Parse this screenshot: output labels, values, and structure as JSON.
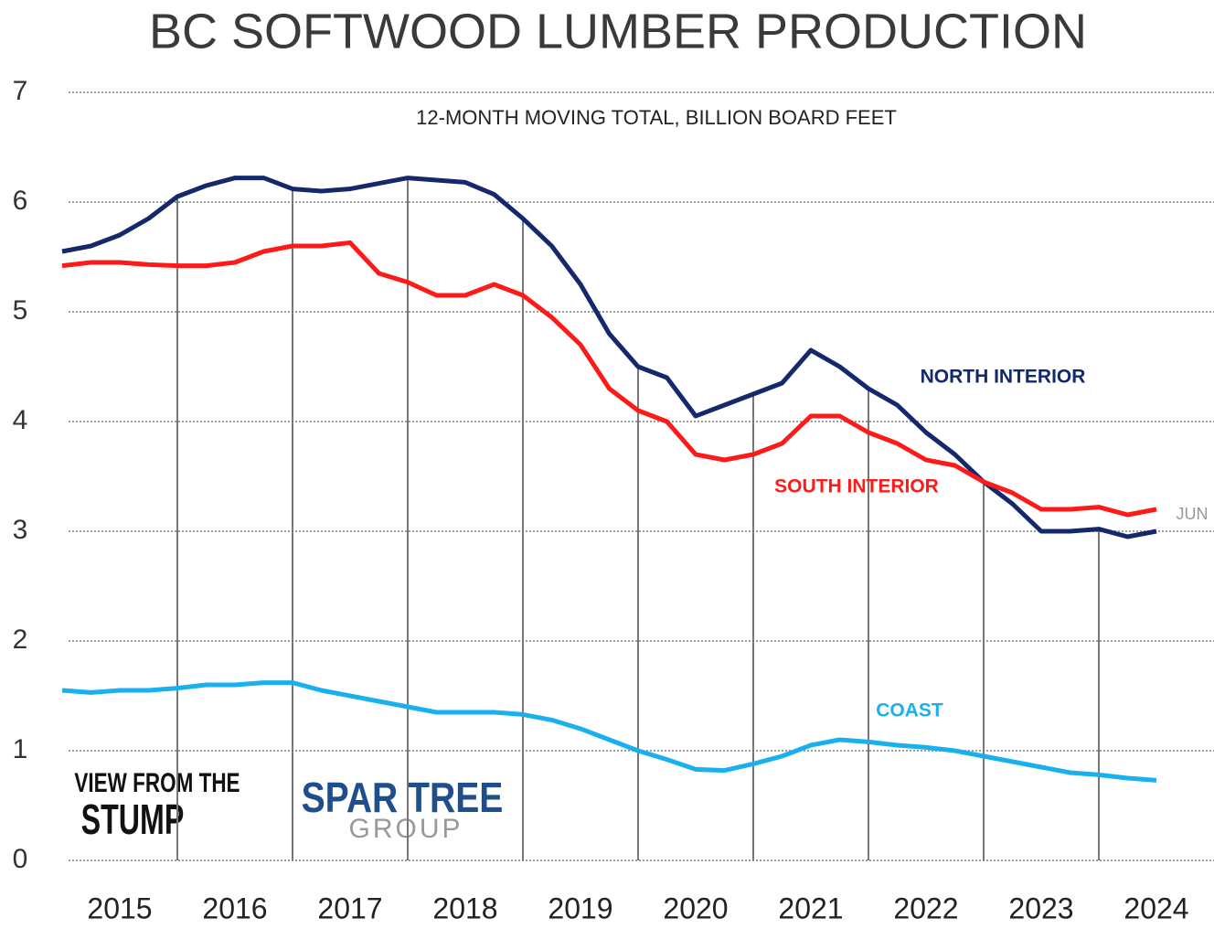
{
  "chart_data": {
    "type": "line",
    "title": "BC SOFTWOOD LUMBER PRODUCTION",
    "subtitle": "12-MONTH MOVING TOTAL, BILLION BOARD FEET",
    "categories": [
      "2015",
      "2016",
      "2017",
      "2018",
      "2019",
      "2020",
      "2021",
      "2022",
      "2023",
      "2024"
    ],
    "x": [
      2015,
      2015.25,
      2015.5,
      2015.75,
      2016,
      2016.25,
      2016.5,
      2016.75,
      2017,
      2017.25,
      2017.5,
      2017.75,
      2018,
      2018.25,
      2018.5,
      2018.75,
      2019,
      2019.25,
      2019.5,
      2019.75,
      2020,
      2020.25,
      2020.5,
      2020.75,
      2021,
      2021.25,
      2021.5,
      2021.75,
      2022,
      2022.25,
      2022.5,
      2022.75,
      2023,
      2023.25,
      2023.5,
      2023.75,
      2024,
      2024.25,
      2024.5
    ],
    "xlim": [
      2015,
      2025
    ],
    "series": [
      {
        "name": "NORTH INTERIOR",
        "color": "#14286b",
        "values": [
          5.55,
          5.6,
          5.7,
          5.85,
          6.05,
          6.15,
          6.22,
          6.22,
          6.12,
          6.1,
          6.12,
          6.17,
          6.22,
          6.2,
          6.18,
          6.07,
          5.85,
          5.6,
          5.25,
          4.8,
          4.5,
          4.4,
          4.05,
          4.15,
          4.25,
          4.35,
          4.65,
          4.5,
          4.3,
          4.15,
          3.9,
          3.7,
          3.45,
          3.25,
          3.0,
          3.0,
          3.02,
          2.95,
          3.0
        ]
      },
      {
        "name": "SOUTH INTERIOR",
        "color": "#ff1a1a",
        "values": [
          5.42,
          5.45,
          5.45,
          5.43,
          5.42,
          5.42,
          5.45,
          5.55,
          5.6,
          5.6,
          5.63,
          5.35,
          5.27,
          5.15,
          5.15,
          5.25,
          5.15,
          4.95,
          4.7,
          4.3,
          4.1,
          4.0,
          3.7,
          3.65,
          3.7,
          3.8,
          4.05,
          4.05,
          3.9,
          3.8,
          3.65,
          3.6,
          3.45,
          3.35,
          3.2,
          3.2,
          3.22,
          3.15,
          3.2
        ]
      },
      {
        "name": "COAST",
        "color": "#1ab0ee",
        "values": [
          1.55,
          1.53,
          1.55,
          1.55,
          1.57,
          1.6,
          1.6,
          1.62,
          1.62,
          1.55,
          1.5,
          1.45,
          1.4,
          1.35,
          1.35,
          1.35,
          1.33,
          1.28,
          1.2,
          1.1,
          1.0,
          0.92,
          0.83,
          0.82,
          0.88,
          0.95,
          1.05,
          1.1,
          1.08,
          1.05,
          1.03,
          1.0,
          0.95,
          0.9,
          0.85,
          0.8,
          0.78,
          0.75,
          0.73
        ]
      }
    ],
    "annotations": [
      "JUN"
    ],
    "logos": [
      "VIEW FROM THE",
      "STUMP",
      "SPAR TREE",
      "GROUP"
    ],
    "ylim": [
      0,
      7
    ],
    "yticks": [
      0,
      1,
      2,
      3,
      4,
      5,
      6,
      7
    ],
    "grid": true
  }
}
